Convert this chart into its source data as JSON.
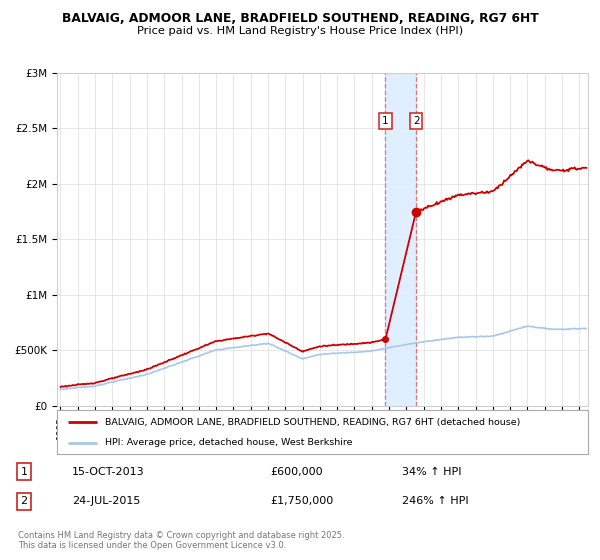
{
  "title1": "BALVAIG, ADMOOR LANE, BRADFIELD SOUTHEND, READING, RG7 6HT",
  "title2": "Price paid vs. HM Land Registry's House Price Index (HPI)",
  "background_color": "#ffffff",
  "plot_bg_color": "#ffffff",
  "grid_color": "#dddddd",
  "hpi_color": "#a8c8e8",
  "price_color": "#cc0000",
  "span_color": "#ddeeff",
  "sale1_date": 2013.79,
  "sale1_price": 600000,
  "sale2_date": 2015.56,
  "sale2_price": 1750000,
  "sale1_label": "1",
  "sale2_label": "2",
  "legend_property": "BALVAIG, ADMOOR LANE, BRADFIELD SOUTHEND, READING, RG7 6HT (detached house)",
  "legend_hpi": "HPI: Average price, detached house, West Berkshire",
  "table_row1": [
    "1",
    "15-OCT-2013",
    "£600,000",
    "34% ↑ HPI"
  ],
  "table_row2": [
    "2",
    "24-JUL-2015",
    "£1,750,000",
    "246% ↑ HPI"
  ],
  "footnote": "Contains HM Land Registry data © Crown copyright and database right 2025.\nThis data is licensed under the Open Government Licence v3.0.",
  "xmin": 1994.8,
  "xmax": 2025.5,
  "ymin": 0,
  "ymax": 3000000,
  "yticks": [
    0,
    500000,
    1000000,
    1500000,
    2000000,
    2500000,
    3000000
  ],
  "ytick_labels": [
    "£0",
    "£500K",
    "£1M",
    "£1.5M",
    "£2M",
    "£2.5M",
    "£3M"
  ]
}
